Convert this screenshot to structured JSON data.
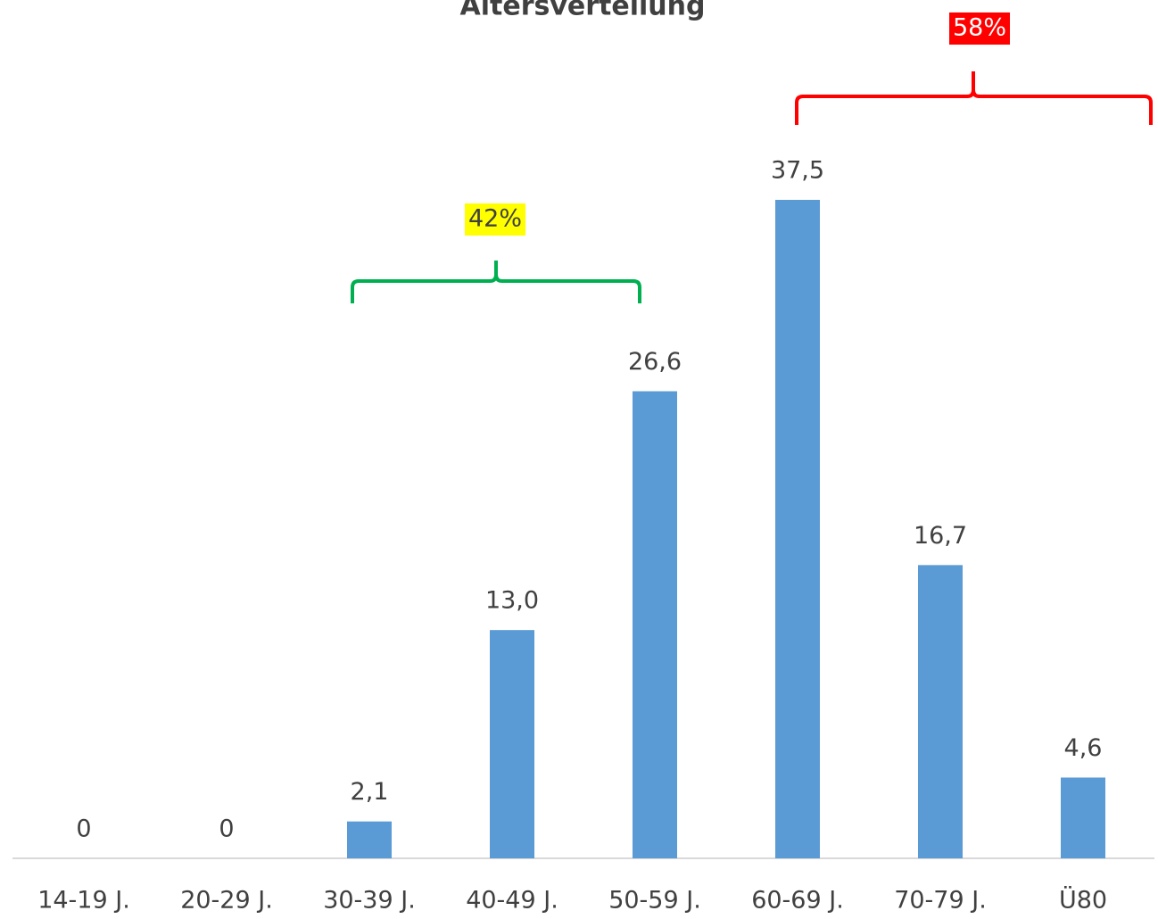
{
  "chart_data": {
    "type": "bar",
    "title": "Altersverteilung",
    "categories": [
      "14-19 J.",
      "20-29 J.",
      "30-39 J.",
      "40-49 J.",
      "50-59 J.",
      "60-69 J.",
      "70-79 J.",
      "Ü80"
    ],
    "values": [
      0,
      0,
      2.1,
      13.0,
      26.6,
      37.5,
      16.7,
      4.6
    ],
    "value_labels": [
      "0",
      "0",
      "2,1",
      "13,0",
      "26,6",
      "37,5",
      "16,7",
      "4,6"
    ],
    "color": "#5b9bd5",
    "annotations": [
      {
        "text": "42%"
      },
      {
        "text": "58%"
      }
    ]
  }
}
